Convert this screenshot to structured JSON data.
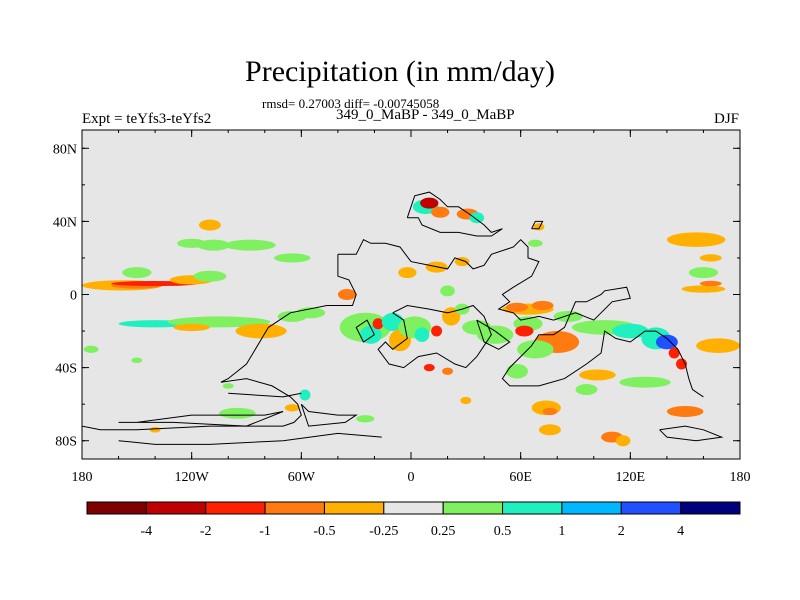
{
  "chart_data": {
    "type": "map",
    "title": "Precipitation (in mm/day)",
    "subtitle": "rmsd= 0.27003 diff= -0.00745058",
    "left_label": "Expt = teYfs3-teYfs2",
    "center_label": "349_0_MaBP - 349_0_MaBP",
    "right_label": "DJF",
    "xlim": [
      -180,
      180
    ],
    "ylim": [
      -90,
      90
    ],
    "x_ticks": [
      {
        "value": -180,
        "label": "180"
      },
      {
        "value": -120,
        "label": "120W"
      },
      {
        "value": -60,
        "label": "60W"
      },
      {
        "value": 0,
        "label": "0"
      },
      {
        "value": 60,
        "label": "60E"
      },
      {
        "value": 120,
        "label": "120E"
      },
      {
        "value": 180,
        "label": "180"
      }
    ],
    "y_ticks": [
      {
        "value": 80,
        "label": "80N"
      },
      {
        "value": 40,
        "label": "40N"
      },
      {
        "value": 0,
        "label": "0"
      },
      {
        "value": -40,
        "label": "40S"
      },
      {
        "value": -80,
        "label": "80S"
      }
    ],
    "background_color": "#e6e6e6",
    "colorbar": {
      "colors": [
        "#7f0000",
        "#c00000",
        "#ff2000",
        "#ff7a10",
        "#ffb000",
        "#e6e6e6",
        "#7ff060",
        "#20f0c0",
        "#00b8ff",
        "#2050ff",
        "#00007f"
      ],
      "labels": [
        "-4",
        "-2",
        "-1",
        "-0.5",
        "-0.25",
        "0.25",
        "0.5",
        "1",
        "2",
        "4"
      ]
    },
    "blobs": [
      {
        "lon": -158,
        "lat": 5,
        "rx": 22,
        "ry": 2.8,
        "color": "#ffb000"
      },
      {
        "lon": -150,
        "lat": 5,
        "rx": 14,
        "ry": 1.8,
        "color": "#ff7a10"
      },
      {
        "lon": -140,
        "lat": 6,
        "rx": 24,
        "ry": 1.4,
        "color": "#ff2000"
      },
      {
        "lon": -120,
        "lat": 8,
        "rx": 12,
        "ry": 2.5,
        "color": "#ffb000"
      },
      {
        "lon": -150,
        "lat": 12,
        "rx": 8,
        "ry": 3,
        "color": "#7ff060"
      },
      {
        "lon": -110,
        "lat": 10,
        "rx": 9,
        "ry": 3,
        "color": "#7ff060"
      },
      {
        "lon": -140,
        "lat": -16,
        "rx": 20,
        "ry": 2,
        "color": "#20f0c0"
      },
      {
        "lon": -105,
        "lat": -15,
        "rx": 28,
        "ry": 3,
        "color": "#7ff060"
      },
      {
        "lon": -120,
        "lat": -18,
        "rx": 10,
        "ry": 2,
        "color": "#ffb000"
      },
      {
        "lon": -82,
        "lat": -20,
        "rx": 14,
        "ry": 4,
        "color": "#ffb000"
      },
      {
        "lon": -65,
        "lat": -12,
        "rx": 8,
        "ry": 3,
        "color": "#7ff060"
      },
      {
        "lon": -120,
        "lat": 28,
        "rx": 8,
        "ry": 2.5,
        "color": "#7ff060"
      },
      {
        "lon": -108,
        "lat": 27,
        "rx": 9,
        "ry": 3,
        "color": "#7ff060"
      },
      {
        "lon": -88,
        "lat": 27,
        "rx": 14,
        "ry": 3,
        "color": "#7ff060"
      },
      {
        "lon": -110,
        "lat": 38,
        "rx": 6,
        "ry": 3,
        "color": "#ffb000"
      },
      {
        "lon": -65,
        "lat": 20,
        "rx": 10,
        "ry": 2.5,
        "color": "#7ff060"
      },
      {
        "lon": -55,
        "lat": -10,
        "rx": 8,
        "ry": 3,
        "color": "#7ff060"
      },
      {
        "lon": -35,
        "lat": 0,
        "rx": 5,
        "ry": 3,
        "color": "#ff7a10"
      },
      {
        "lon": -25,
        "lat": -18,
        "rx": 14,
        "ry": 8,
        "color": "#7ff060"
      },
      {
        "lon": -22,
        "lat": -22,
        "rx": 6,
        "ry": 5,
        "color": "#20f0c0"
      },
      {
        "lon": -18,
        "lat": -16,
        "rx": 3,
        "ry": 3,
        "color": "#ff2000"
      },
      {
        "lon": -10,
        "lat": -15,
        "rx": 6,
        "ry": 5,
        "color": "#20f0c0"
      },
      {
        "lon": -6,
        "lat": -25,
        "rx": 6,
        "ry": 6,
        "color": "#ffb000"
      },
      {
        "lon": 2,
        "lat": -18,
        "rx": 9,
        "ry": 6,
        "color": "#7ff060"
      },
      {
        "lon": 6,
        "lat": -22,
        "rx": 4,
        "ry": 4,
        "color": "#20f0c0"
      },
      {
        "lon": 14,
        "lat": -20,
        "rx": 3,
        "ry": 3,
        "color": "#ff2000"
      },
      {
        "lon": 22,
        "lat": -12,
        "rx": 5,
        "ry": 5,
        "color": "#ffb000"
      },
      {
        "lon": 28,
        "lat": -8,
        "rx": 4,
        "ry": 3,
        "color": "#7ff060"
      },
      {
        "lon": 36,
        "lat": -18,
        "rx": 8,
        "ry": 4,
        "color": "#7ff060"
      },
      {
        "lon": 46,
        "lat": -22,
        "rx": 10,
        "ry": 5,
        "color": "#7ff060"
      },
      {
        "lon": -2,
        "lat": 12,
        "rx": 5,
        "ry": 3,
        "color": "#ffb000"
      },
      {
        "lon": 14,
        "lat": 15,
        "rx": 6,
        "ry": 3,
        "color": "#ffb000"
      },
      {
        "lon": 28,
        "lat": 18,
        "rx": 4,
        "ry": 2.5,
        "color": "#ffb000"
      },
      {
        "lon": 20,
        "lat": 2,
        "rx": 4,
        "ry": 3,
        "color": "#7ff060"
      },
      {
        "lon": 8,
        "lat": 48,
        "rx": 7,
        "ry": 4,
        "color": "#20f0c0"
      },
      {
        "lon": 10,
        "lat": 50,
        "rx": 5,
        "ry": 3,
        "color": "#c00000"
      },
      {
        "lon": 16,
        "lat": 45,
        "rx": 5,
        "ry": 3,
        "color": "#ff7a10"
      },
      {
        "lon": 31,
        "lat": 44,
        "rx": 6,
        "ry": 3,
        "color": "#ff7a10"
      },
      {
        "lon": 36,
        "lat": 42,
        "rx": 4,
        "ry": 3,
        "color": "#20f0c0"
      },
      {
        "lon": 70,
        "lat": 37,
        "rx": 3,
        "ry": 2,
        "color": "#ffb000"
      },
      {
        "lon": 68,
        "lat": 28,
        "rx": 4,
        "ry": 2,
        "color": "#7ff060"
      },
      {
        "lon": 64,
        "lat": -8,
        "rx": 14,
        "ry": 3,
        "color": "#ffb000"
      },
      {
        "lon": 58,
        "lat": -7,
        "rx": 6,
        "ry": 2.5,
        "color": "#ff7a10"
      },
      {
        "lon": 72,
        "lat": -6,
        "rx": 6,
        "ry": 2.5,
        "color": "#ff7a10"
      },
      {
        "lon": 64,
        "lat": -16,
        "rx": 8,
        "ry": 4,
        "color": "#7ff060"
      },
      {
        "lon": 62,
        "lat": -20,
        "rx": 5,
        "ry": 3,
        "color": "#ff2000"
      },
      {
        "lon": 86,
        "lat": -12,
        "rx": 8,
        "ry": 3,
        "color": "#7ff060"
      },
      {
        "lon": 80,
        "lat": -26,
        "rx": 12,
        "ry": 6,
        "color": "#ff7a10"
      },
      {
        "lon": 68,
        "lat": -30,
        "rx": 10,
        "ry": 5,
        "color": "#7ff060"
      },
      {
        "lon": 58,
        "lat": -42,
        "rx": 6,
        "ry": 4,
        "color": "#7ff060"
      },
      {
        "lon": 106,
        "lat": -18,
        "rx": 18,
        "ry": 4,
        "color": "#7ff060"
      },
      {
        "lon": 120,
        "lat": -20,
        "rx": 10,
        "ry": 4,
        "color": "#20f0c0"
      },
      {
        "lon": 134,
        "lat": -24,
        "rx": 8,
        "ry": 6,
        "color": "#20f0c0"
      },
      {
        "lon": 140,
        "lat": -26,
        "rx": 6,
        "ry": 4,
        "color": "#2050ff"
      },
      {
        "lon": 144,
        "lat": -32,
        "rx": 3,
        "ry": 3,
        "color": "#ff2000"
      },
      {
        "lon": 148,
        "lat": -38,
        "rx": 3,
        "ry": 3,
        "color": "#ff2000"
      },
      {
        "lon": 160,
        "lat": 3,
        "rx": 12,
        "ry": 2,
        "color": "#ffb000"
      },
      {
        "lon": 164,
        "lat": 6,
        "rx": 6,
        "ry": 1.5,
        "color": "#ff7a10"
      },
      {
        "lon": 160,
        "lat": 12,
        "rx": 8,
        "ry": 3,
        "color": "#7ff060"
      },
      {
        "lon": 156,
        "lat": 30,
        "rx": 16,
        "ry": 4,
        "color": "#ffb000"
      },
      {
        "lon": 164,
        "lat": 20,
        "rx": 6,
        "ry": 2,
        "color": "#ffb000"
      },
      {
        "lon": 168,
        "lat": -28,
        "rx": 12,
        "ry": 4,
        "color": "#ffb000"
      },
      {
        "lon": 102,
        "lat": -44,
        "rx": 10,
        "ry": 3,
        "color": "#ffb000"
      },
      {
        "lon": 128,
        "lat": -48,
        "rx": 14,
        "ry": 3,
        "color": "#7ff060"
      },
      {
        "lon": 96,
        "lat": -52,
        "rx": 6,
        "ry": 3,
        "color": "#7ff060"
      },
      {
        "lon": 150,
        "lat": -64,
        "rx": 10,
        "ry": 3,
        "color": "#ff7a10"
      },
      {
        "lon": 74,
        "lat": -62,
        "rx": 8,
        "ry": 4,
        "color": "#ffb000"
      },
      {
        "lon": 76,
        "lat": -64,
        "rx": 4,
        "ry": 2,
        "color": "#ff7a10"
      },
      {
        "lon": 76,
        "lat": -74,
        "rx": 6,
        "ry": 3,
        "color": "#ffb000"
      },
      {
        "lon": 110,
        "lat": -78,
        "rx": 6,
        "ry": 3,
        "color": "#ff7a10"
      },
      {
        "lon": 116,
        "lat": -80,
        "rx": 4,
        "ry": 3,
        "color": "#ffb000"
      },
      {
        "lon": -95,
        "lat": -65,
        "rx": 10,
        "ry": 3,
        "color": "#7ff060"
      },
      {
        "lon": -65,
        "lat": -62,
        "rx": 4,
        "ry": 2,
        "color": "#ffb000"
      },
      {
        "lon": -25,
        "lat": -68,
        "rx": 5,
        "ry": 2,
        "color": "#7ff060"
      },
      {
        "lon": -140,
        "lat": -74,
        "rx": 3,
        "ry": 1.5,
        "color": "#ffb000"
      },
      {
        "lon": -175,
        "lat": -30,
        "rx": 4,
        "ry": 2,
        "color": "#7ff060"
      },
      {
        "lon": -150,
        "lat": -36,
        "rx": 3,
        "ry": 1.5,
        "color": "#7ff060"
      },
      {
        "lon": -100,
        "lat": -50,
        "rx": 3,
        "ry": 1.5,
        "color": "#7ff060"
      },
      {
        "lon": 30,
        "lat": -58,
        "rx": 3,
        "ry": 2,
        "color": "#ffb000"
      },
      {
        "lon": -58,
        "lat": -55,
        "rx": 3,
        "ry": 3,
        "color": "#20f0c0"
      },
      {
        "lon": 10,
        "lat": -40,
        "rx": 3,
        "ry": 2,
        "color": "#ff2000"
      },
      {
        "lon": 20,
        "lat": -42,
        "rx": 3,
        "ry": 2,
        "color": "#ff7a10"
      }
    ],
    "coastlines": [
      [
        [
          -40,
          22
        ],
        [
          -40,
          10
        ],
        [
          -34,
          8
        ],
        [
          -30,
          0
        ],
        [
          -32,
          -6
        ],
        [
          -46,
          -6
        ],
        [
          -66,
          -10
        ],
        [
          -78,
          -18
        ],
        [
          -90,
          -38
        ],
        [
          -100,
          -46
        ],
        [
          -104,
          -48
        ],
        [
          -90,
          -46
        ],
        [
          -76,
          -50
        ],
        [
          -66,
          -56
        ],
        [
          -62,
          -60
        ],
        [
          -60,
          -66
        ],
        [
          -64,
          -70
        ],
        [
          -70,
          -72
        ],
        [
          -110,
          -72
        ],
        [
          -150,
          -74
        ],
        [
          -170,
          -74
        ],
        [
          -180,
          -72
        ]
      ],
      [
        [
          -40,
          22
        ],
        [
          -30,
          22
        ],
        [
          -26,
          30
        ],
        [
          -22,
          28
        ],
        [
          -14,
          28
        ],
        [
          -6,
          26
        ],
        [
          0,
          18
        ],
        [
          10,
          16
        ],
        [
          20,
          14
        ],
        [
          24,
          20
        ],
        [
          30,
          18
        ],
        [
          34,
          14
        ],
        [
          40,
          16
        ],
        [
          44,
          22
        ],
        [
          56,
          26
        ],
        [
          60,
          30
        ],
        [
          64,
          26
        ],
        [
          64,
          20
        ],
        [
          70,
          18
        ],
        [
          66,
          10
        ],
        [
          56,
          4
        ],
        [
          50,
          0
        ],
        [
          54,
          -4
        ],
        [
          48,
          -8
        ],
        [
          56,
          -10
        ],
        [
          60,
          -14
        ],
        [
          70,
          -12
        ],
        [
          78,
          -14
        ],
        [
          90,
          -10
        ],
        [
          100,
          -14
        ],
        [
          110,
          -4
        ],
        [
          120,
          -2
        ],
        [
          118,
          4
        ],
        [
          106,
          2
        ],
        [
          104,
          0
        ],
        [
          96,
          -4
        ],
        [
          90,
          -4
        ],
        [
          84,
          -18
        ],
        [
          78,
          -22
        ],
        [
          70,
          -22
        ],
        [
          66,
          -28
        ],
        [
          60,
          -34
        ],
        [
          54,
          -40
        ],
        [
          50,
          -46
        ],
        [
          54,
          -50
        ],
        [
          70,
          -50
        ],
        [
          84,
          -46
        ],
        [
          96,
          -38
        ],
        [
          104,
          -32
        ],
        [
          106,
          -20
        ],
        [
          112,
          -24
        ],
        [
          120,
          -26
        ],
        [
          128,
          -20
        ],
        [
          134,
          -20
        ],
        [
          140,
          -24
        ],
        [
          146,
          -30
        ],
        [
          150,
          -38
        ],
        [
          152,
          -46
        ],
        [
          154,
          -52
        ],
        [
          160,
          -56
        ]
      ],
      [
        [
          -10,
          -10
        ],
        [
          -4,
          -14
        ],
        [
          -2,
          -24
        ],
        [
          -10,
          -30
        ],
        [
          -14,
          -26
        ],
        [
          -18,
          -30
        ],
        [
          -12,
          -38
        ],
        [
          -4,
          -40
        ],
        [
          4,
          -34
        ],
        [
          14,
          -32
        ],
        [
          24,
          -38
        ],
        [
          30,
          -40
        ],
        [
          36,
          -34
        ],
        [
          40,
          -28
        ],
        [
          44,
          -22
        ],
        [
          40,
          -12
        ],
        [
          34,
          -6
        ],
        [
          28,
          -8
        ],
        [
          20,
          -10
        ],
        [
          10,
          -8
        ],
        [
          -2,
          -6
        ],
        [
          -10,
          -10
        ]
      ],
      [
        [
          -2,
          42
        ],
        [
          2,
          54
        ],
        [
          10,
          56
        ],
        [
          16,
          52
        ],
        [
          20,
          48
        ],
        [
          26,
          48
        ],
        [
          32,
          44
        ],
        [
          40,
          38
        ],
        [
          44,
          34
        ],
        [
          50,
          36
        ],
        [
          44,
          32
        ],
        [
          36,
          32
        ],
        [
          26,
          34
        ],
        [
          16,
          34
        ],
        [
          6,
          38
        ],
        [
          4,
          42
        ],
        [
          -2,
          42
        ]
      ],
      [
        [
          66,
          36
        ],
        [
          70,
          36
        ],
        [
          72,
          40
        ],
        [
          68,
          40
        ],
        [
          66,
          36
        ]
      ],
      [
        [
          -60,
          -60
        ],
        [
          -56,
          -64
        ],
        [
          -40,
          -66
        ],
        [
          -30,
          -66
        ],
        [
          -36,
          -70
        ],
        [
          -56,
          -72
        ],
        [
          -60,
          -60
        ]
      ],
      [
        [
          -70,
          -64
        ],
        [
          -80,
          -66
        ],
        [
          -120,
          -66
        ],
        [
          -150,
          -70
        ],
        [
          -160,
          -70
        ],
        [
          -130,
          -70
        ],
        [
          -90,
          -72
        ],
        [
          -70,
          -64
        ]
      ],
      [
        [
          -100,
          -54
        ],
        [
          -70,
          -56
        ],
        [
          -60,
          -54
        ]
      ],
      [
        [
          136,
          -74
        ],
        [
          150,
          -72
        ],
        [
          160,
          -74
        ],
        [
          170,
          -78
        ],
        [
          156,
          -80
        ],
        [
          140,
          -78
        ],
        [
          136,
          -74
        ]
      ],
      [
        [
          -16,
          -78
        ],
        [
          -40,
          -76
        ],
        [
          -70,
          -80
        ],
        [
          -110,
          -82
        ],
        [
          -140,
          -82
        ],
        [
          -160,
          -80
        ]
      ],
      [
        [
          -20,
          -22
        ],
        [
          -26,
          -26
        ],
        [
          -30,
          -18
        ],
        [
          -24,
          -14
        ],
        [
          -20,
          -22
        ]
      ],
      [
        [
          36,
          -14
        ],
        [
          46,
          -20
        ],
        [
          54,
          -26
        ],
        [
          48,
          -30
        ],
        [
          40,
          -26
        ],
        [
          36,
          -14
        ]
      ]
    ]
  }
}
